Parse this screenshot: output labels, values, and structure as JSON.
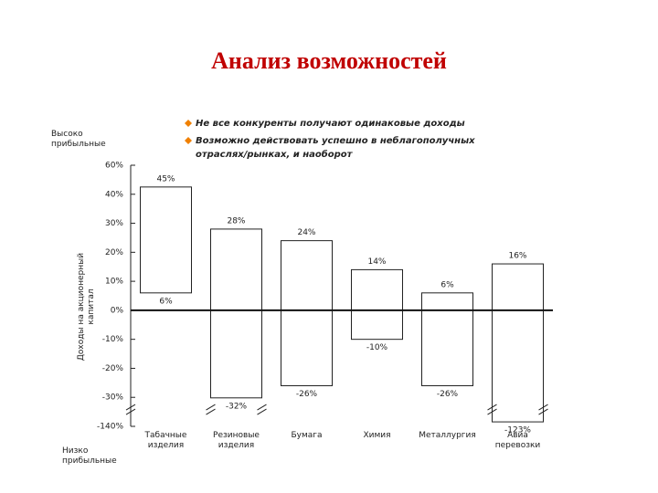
{
  "chart_data": {
    "type": "floating_bar",
    "title": "Анализ возможностей",
    "annotations": [
      "Не все конкуренты получают одинаковые доходы",
      "Возможно действовать успешно в неблагополучных отраслях/рынках, и наоборот"
    ],
    "y_top_label": "Высоко прибыльные",
    "y_bottom_label": "Низко прибыльные",
    "y_label": "Доходы на акционерный капитал",
    "categories": [
      "Табачные изделия",
      "Резиновые изделия",
      "Бумага",
      "Химия",
      "Металлургия",
      "Авиа перевозки"
    ],
    "series": [
      {
        "values": [
          45,
          28,
          24,
          14,
          6,
          16
        ],
        "value_labels": [
          "45%",
          "28%",
          "24%",
          "14%",
          "6%",
          "16%"
        ]
      },
      {
        "values": [
          6,
          -32,
          -26,
          -10,
          -26,
          -123
        ],
        "value_labels": [
          "6%",
          "-32%",
          "-26%",
          "-10%",
          "-26%",
          "-123%"
        ]
      }
    ],
    "color": "#ffffff",
    "yticks": [
      {
        "value": 60,
        "label": "60%"
      },
      {
        "value": 40,
        "label": "40%"
      },
      {
        "value": 30,
        "label": "30%"
      },
      {
        "value": 20,
        "label": "20%"
      },
      {
        "value": 10,
        "label": "10%"
      },
      {
        "value": 0,
        "label": "0%"
      },
      {
        "value": -10,
        "label": "-10%"
      },
      {
        "value": -20,
        "label": "-20%"
      },
      {
        "value": -30,
        "label": "-30%"
      },
      {
        "value": -140,
        "label": "-140%"
      }
    ],
    "ylim": [
      -140,
      60
    ]
  }
}
